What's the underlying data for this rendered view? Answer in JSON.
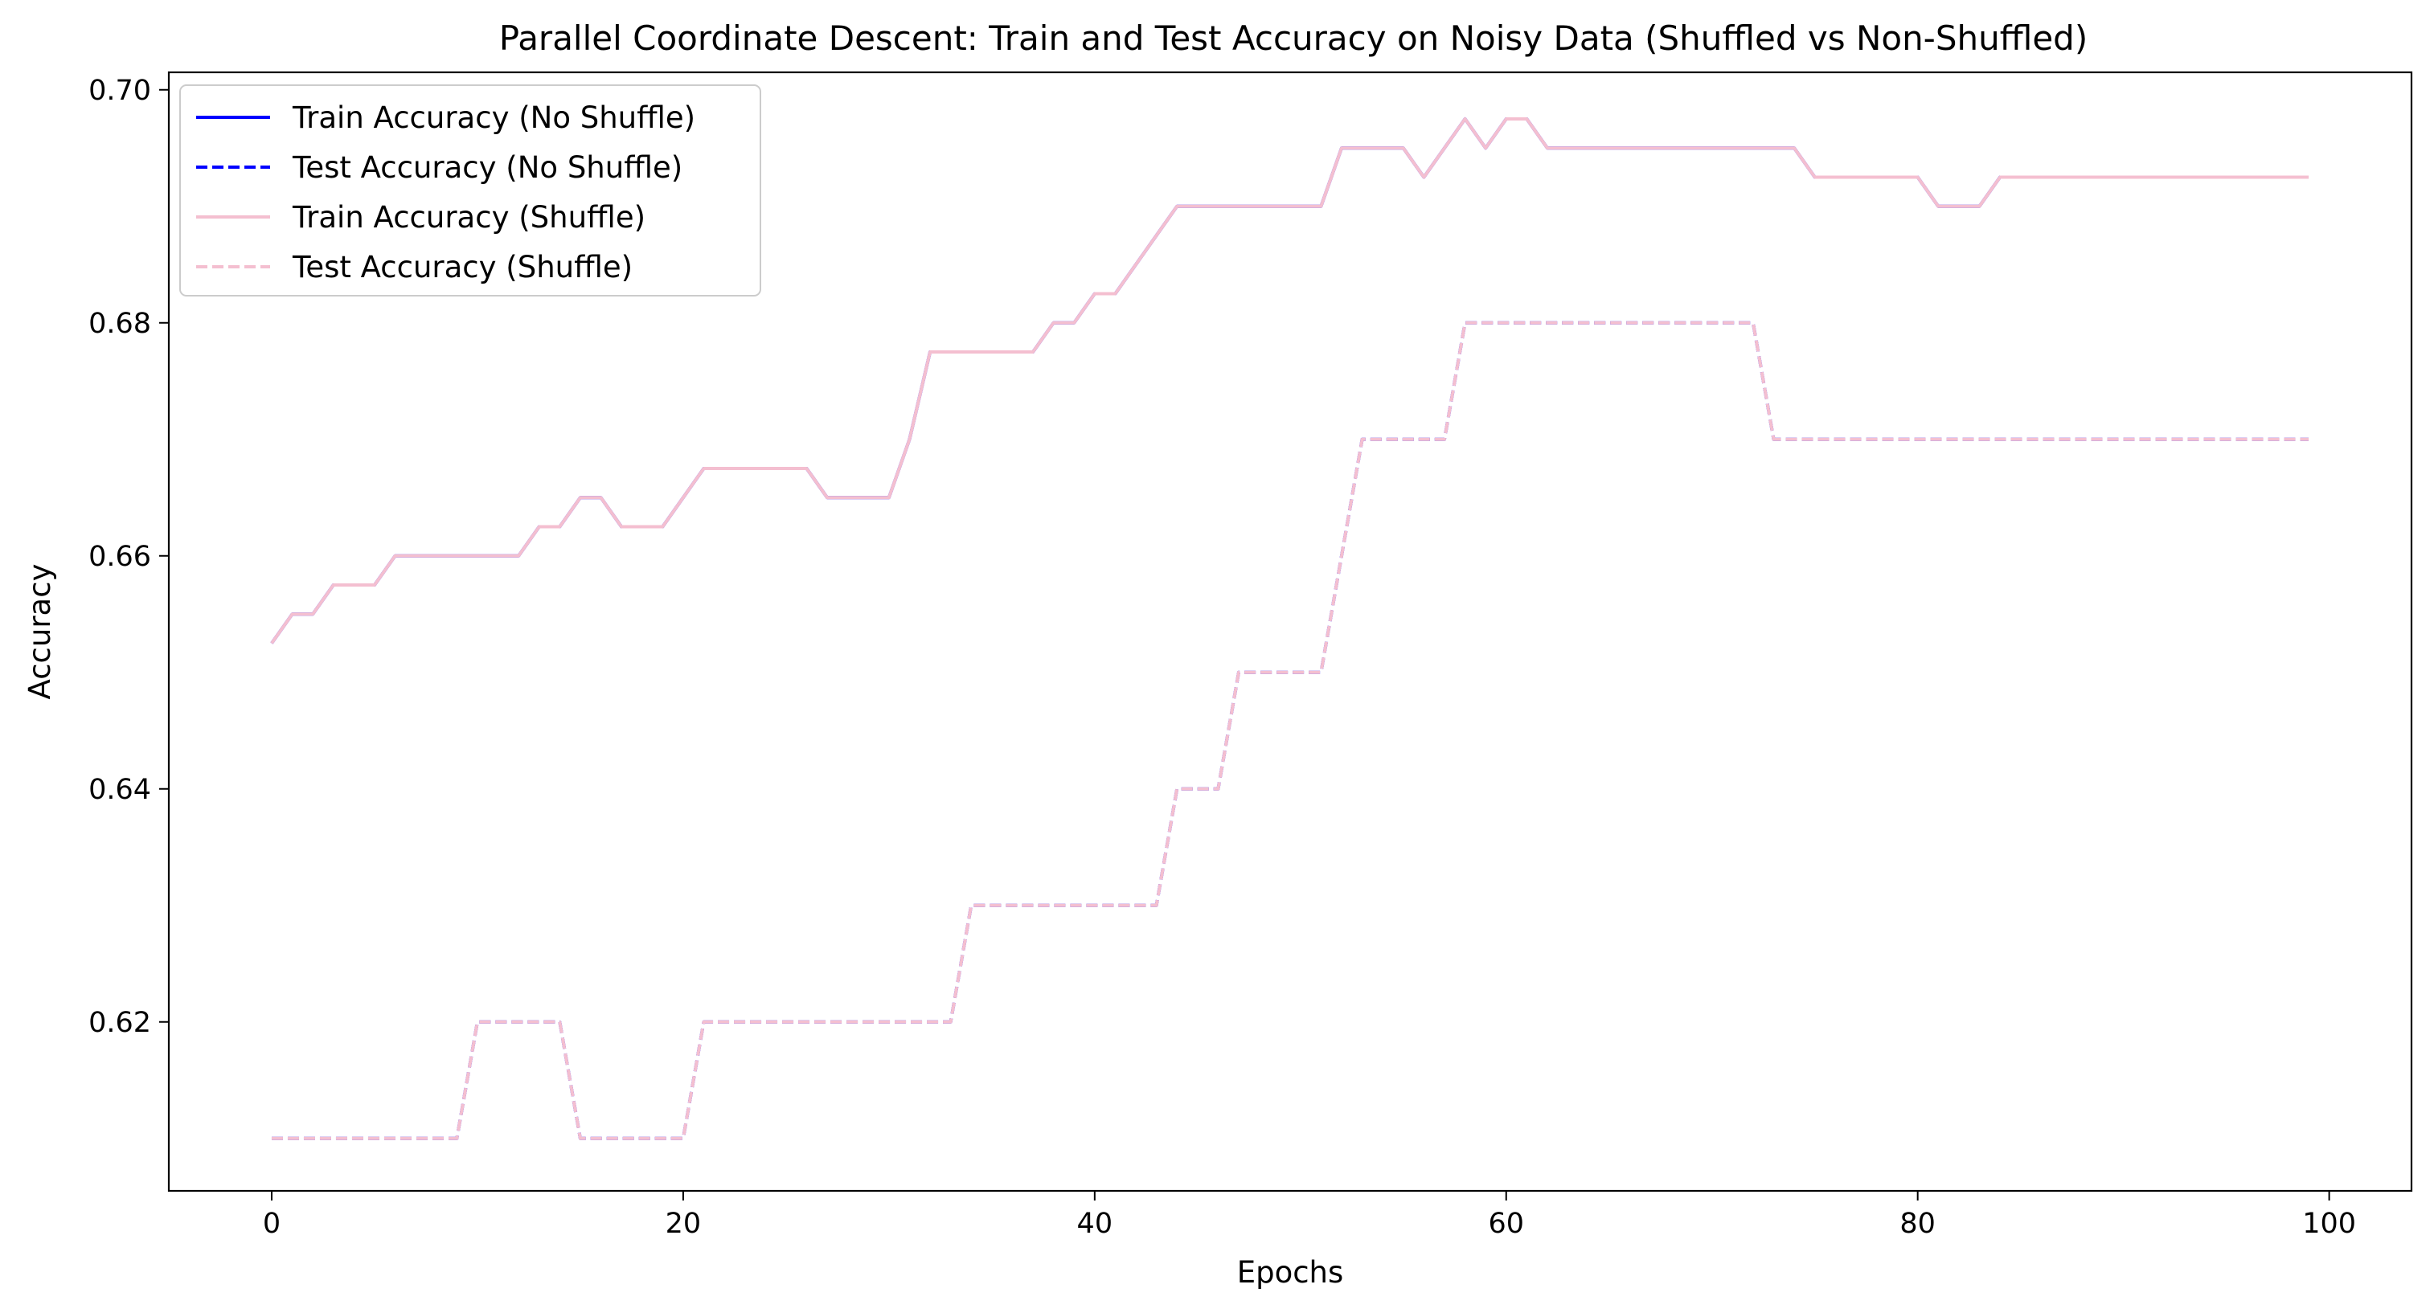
{
  "chart_data": {
    "type": "line",
    "title": "Parallel Coordinate Descent: Train and Test Accuracy on Noisy Data (Shuffled vs Non-Shuffled)",
    "xlabel": "Epochs",
    "ylabel": "Accuracy",
    "xlim": [
      -5,
      104
    ],
    "ylim": [
      0.6055,
      0.7015
    ],
    "xticks": [
      0,
      20,
      40,
      60,
      80,
      100
    ],
    "xtick_labels": [
      "0",
      "20",
      "40",
      "60",
      "80",
      "100"
    ],
    "yticks": [
      0.62,
      0.64,
      0.66,
      0.68,
      0.7
    ],
    "ytick_labels": [
      "0.62",
      "0.64",
      "0.66",
      "0.68",
      "0.70"
    ],
    "grid": false,
    "legend_position": "upper-left",
    "x": [
      0,
      1,
      2,
      3,
      4,
      5,
      6,
      7,
      8,
      9,
      10,
      11,
      12,
      13,
      14,
      15,
      16,
      17,
      18,
      19,
      20,
      21,
      22,
      23,
      24,
      25,
      26,
      27,
      28,
      29,
      30,
      31,
      32,
      33,
      34,
      35,
      36,
      37,
      38,
      39,
      40,
      41,
      42,
      43,
      44,
      45,
      46,
      47,
      48,
      49,
      50,
      51,
      52,
      53,
      54,
      55,
      56,
      57,
      58,
      59,
      60,
      61,
      62,
      63,
      64,
      65,
      66,
      67,
      68,
      69,
      70,
      71,
      72,
      73,
      74,
      75,
      76,
      77,
      78,
      79,
      80,
      81,
      82,
      83,
      84,
      85,
      86,
      87,
      88,
      89,
      90,
      91,
      92,
      93,
      94,
      95,
      96,
      97,
      98,
      99
    ],
    "series": [
      {
        "name": "Train Accuracy (No Shuffle)",
        "color": "#0000ff",
        "linestyle": "solid",
        "values": [
          0.6525,
          0.655,
          0.655,
          0.6575,
          0.6575,
          0.6575,
          0.66,
          0.66,
          0.66,
          0.66,
          0.66,
          0.66,
          0.66,
          0.6625,
          0.6625,
          0.665,
          0.665,
          0.6625,
          0.6625,
          0.6625,
          0.665,
          0.6675,
          0.6675,
          0.6675,
          0.6675,
          0.6675,
          0.6675,
          0.665,
          0.665,
          0.665,
          0.665,
          0.67,
          0.6775,
          0.6775,
          0.6775,
          0.6775,
          0.6775,
          0.6775,
          0.68,
          0.68,
          0.6825,
          0.6825,
          0.685,
          0.6875,
          0.69,
          0.69,
          0.69,
          0.69,
          0.69,
          0.69,
          0.69,
          0.69,
          0.695,
          0.695,
          0.695,
          0.695,
          0.6925,
          0.695,
          0.6975,
          0.695,
          0.6975,
          0.6975,
          0.695,
          0.695,
          0.695,
          0.695,
          0.695,
          0.695,
          0.695,
          0.695,
          0.695,
          0.695,
          0.695,
          0.695,
          0.695,
          0.6925,
          0.6925,
          0.6925,
          0.6925,
          0.6925,
          0.6925,
          0.69,
          0.69,
          0.69,
          0.6925,
          0.6925,
          0.6925,
          0.6925,
          0.6925,
          0.6925,
          0.6925,
          0.6925,
          0.6925,
          0.6925,
          0.6925,
          0.6925,
          0.6925,
          0.6925,
          0.6925,
          0.6925
        ]
      },
      {
        "name": "Test Accuracy (No Shuffle)",
        "color": "#0000ff",
        "linestyle": "dashed",
        "values": [
          0.61,
          0.61,
          0.61,
          0.61,
          0.61,
          0.61,
          0.61,
          0.61,
          0.61,
          0.61,
          0.62,
          0.62,
          0.62,
          0.62,
          0.62,
          0.61,
          0.61,
          0.61,
          0.61,
          0.61,
          0.61,
          0.62,
          0.62,
          0.62,
          0.62,
          0.62,
          0.62,
          0.62,
          0.62,
          0.62,
          0.62,
          0.62,
          0.62,
          0.62,
          0.63,
          0.63,
          0.63,
          0.63,
          0.63,
          0.63,
          0.63,
          0.63,
          0.63,
          0.63,
          0.64,
          0.64,
          0.64,
          0.65,
          0.65,
          0.65,
          0.65,
          0.65,
          0.66,
          0.67,
          0.67,
          0.67,
          0.67,
          0.67,
          0.68,
          0.68,
          0.68,
          0.68,
          0.68,
          0.68,
          0.68,
          0.68,
          0.68,
          0.68,
          0.68,
          0.68,
          0.68,
          0.68,
          0.68,
          0.67,
          0.67,
          0.67,
          0.67,
          0.67,
          0.67,
          0.67,
          0.67,
          0.67,
          0.67,
          0.67,
          0.67,
          0.67,
          0.67,
          0.67,
          0.67,
          0.67,
          0.67,
          0.67,
          0.67,
          0.67,
          0.67,
          0.67,
          0.67,
          0.67,
          0.67,
          0.67
        ]
      },
      {
        "name": "Train Accuracy (Shuffle)",
        "color": "#f4bfd0",
        "linestyle": "solid",
        "values": [
          0.6525,
          0.655,
          0.655,
          0.6575,
          0.6575,
          0.6575,
          0.66,
          0.66,
          0.66,
          0.66,
          0.66,
          0.66,
          0.66,
          0.6625,
          0.6625,
          0.665,
          0.665,
          0.6625,
          0.6625,
          0.6625,
          0.665,
          0.6675,
          0.6675,
          0.6675,
          0.6675,
          0.6675,
          0.6675,
          0.665,
          0.665,
          0.665,
          0.665,
          0.67,
          0.6775,
          0.6775,
          0.6775,
          0.6775,
          0.6775,
          0.6775,
          0.68,
          0.68,
          0.6825,
          0.6825,
          0.685,
          0.6875,
          0.69,
          0.69,
          0.69,
          0.69,
          0.69,
          0.69,
          0.69,
          0.69,
          0.695,
          0.695,
          0.695,
          0.695,
          0.6925,
          0.695,
          0.6975,
          0.695,
          0.6975,
          0.6975,
          0.695,
          0.695,
          0.695,
          0.695,
          0.695,
          0.695,
          0.695,
          0.695,
          0.695,
          0.695,
          0.695,
          0.695,
          0.695,
          0.6925,
          0.6925,
          0.6925,
          0.6925,
          0.6925,
          0.6925,
          0.69,
          0.69,
          0.69,
          0.6925,
          0.6925,
          0.6925,
          0.6925,
          0.6925,
          0.6925,
          0.6925,
          0.6925,
          0.6925,
          0.6925,
          0.6925,
          0.6925,
          0.6925,
          0.6925,
          0.6925,
          0.6925
        ]
      },
      {
        "name": "Test Accuracy (Shuffle)",
        "color": "#f4bfd0",
        "linestyle": "dashed",
        "values": [
          0.61,
          0.61,
          0.61,
          0.61,
          0.61,
          0.61,
          0.61,
          0.61,
          0.61,
          0.61,
          0.62,
          0.62,
          0.62,
          0.62,
          0.62,
          0.61,
          0.61,
          0.61,
          0.61,
          0.61,
          0.61,
          0.62,
          0.62,
          0.62,
          0.62,
          0.62,
          0.62,
          0.62,
          0.62,
          0.62,
          0.62,
          0.62,
          0.62,
          0.62,
          0.63,
          0.63,
          0.63,
          0.63,
          0.63,
          0.63,
          0.63,
          0.63,
          0.63,
          0.63,
          0.64,
          0.64,
          0.64,
          0.65,
          0.65,
          0.65,
          0.65,
          0.65,
          0.66,
          0.67,
          0.67,
          0.67,
          0.67,
          0.67,
          0.68,
          0.68,
          0.68,
          0.68,
          0.68,
          0.68,
          0.68,
          0.68,
          0.68,
          0.68,
          0.68,
          0.68,
          0.68,
          0.68,
          0.68,
          0.67,
          0.67,
          0.67,
          0.67,
          0.67,
          0.67,
          0.67,
          0.67,
          0.67,
          0.67,
          0.67,
          0.67,
          0.67,
          0.67,
          0.67,
          0.67,
          0.67,
          0.67,
          0.67,
          0.67,
          0.67,
          0.67,
          0.67,
          0.67,
          0.67,
          0.67,
          0.67
        ]
      }
    ]
  }
}
